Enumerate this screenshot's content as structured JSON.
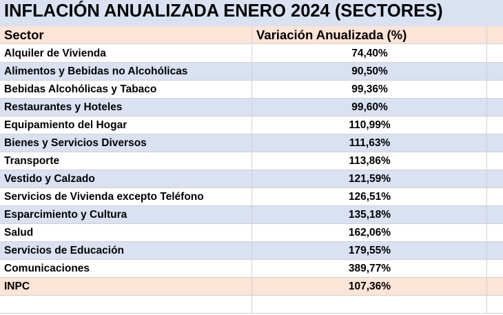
{
  "title": "INFLACIÓN ANUALIZADA ENERO 2024 (SECTORES)",
  "header": {
    "col1": "Sector",
    "col2": "Variación Anualizada (%)"
  },
  "rows": [
    {
      "sector": "Alquiler de Vivienda",
      "value": "74,40%"
    },
    {
      "sector": "Alimentos y Bebidas no Alcohólicas",
      "value": "90,50%"
    },
    {
      "sector": "Bebidas Alcohólicas y Tabaco",
      "value": "99,36%"
    },
    {
      "sector": "Restaurantes y Hoteles",
      "value": "99,60%"
    },
    {
      "sector": "Equipamiento del Hogar",
      "value": "110,99%"
    },
    {
      "sector": "Bienes y Servicios Diversos",
      "value": "111,63%"
    },
    {
      "sector": "Transporte",
      "value": "113,86%"
    },
    {
      "sector": "Vestido y Calzado",
      "value": "121,59%"
    },
    {
      "sector": "Servicios de Vivienda excepto Teléfono",
      "value": "126,51%"
    },
    {
      "sector": "Esparcimiento y Cultura",
      "value": "135,18%"
    },
    {
      "sector": "Salud",
      "value": "162,06%"
    },
    {
      "sector": "Servicios de Educación",
      "value": "179,55%"
    },
    {
      "sector": "Comunicaciones",
      "value": "389,77%"
    }
  ],
  "total": {
    "sector": "INPC",
    "value": "107,36%"
  },
  "colors": {
    "title_bg": "#d9e1f2",
    "header_bg": "#fce4d6",
    "band_bg": "#d9e1f2",
    "total_bg": "#fce4d6"
  }
}
